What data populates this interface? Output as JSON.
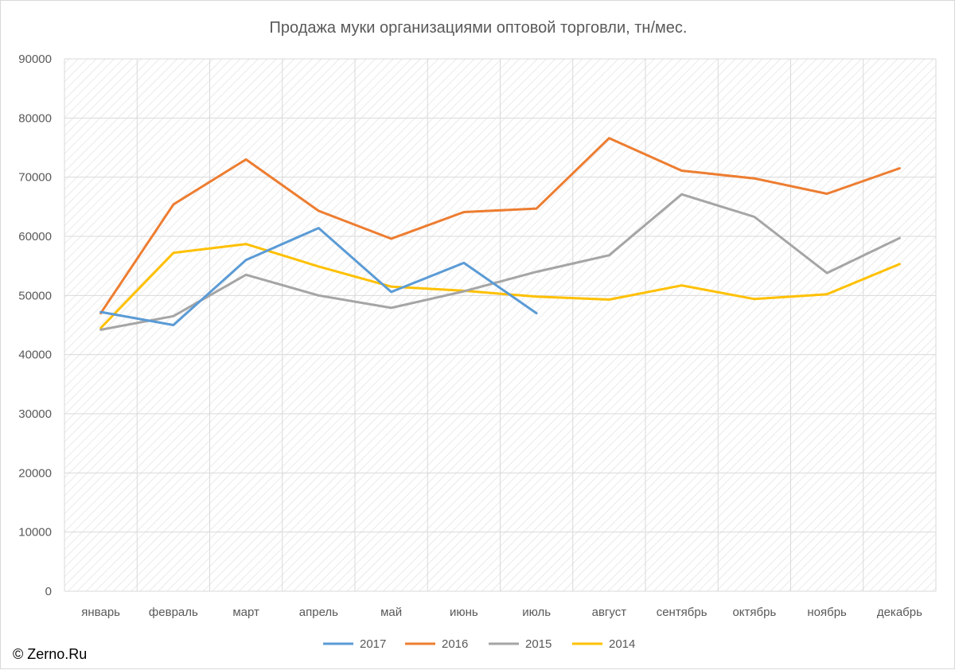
{
  "chart_data": {
    "type": "line",
    "title": "Продажа муки организациями оптовой торговли, тн/мес.",
    "categories": [
      "январь",
      "февраль",
      "март",
      "апрель",
      "май",
      "июнь",
      "июль",
      "август",
      "сентябрь",
      "октябрь",
      "ноябрь",
      "декабрь"
    ],
    "ylim": [
      0,
      90000
    ],
    "yticks": [
      "0",
      "10000",
      "20000",
      "30000",
      "40000",
      "50000",
      "60000",
      "70000",
      "80000",
      "90000"
    ],
    "grid": true,
    "legend_position": "bottom",
    "series": [
      {
        "name": "2017",
        "color": "#5b9bd5",
        "values": [
          47200,
          45000,
          56000,
          61400,
          50600,
          55500,
          47000,
          null,
          null,
          null,
          null,
          null
        ]
      },
      {
        "name": "2016",
        "color": "#ed7d31",
        "values": [
          47000,
          65400,
          73000,
          64300,
          59600,
          64100,
          64700,
          76600,
          71100,
          69800,
          67200,
          71500
        ]
      },
      {
        "name": "2015",
        "color": "#a5a5a5",
        "values": [
          44200,
          46500,
          53500,
          50000,
          47900,
          50700,
          54000,
          56800,
          67100,
          63300,
          53800,
          59700
        ]
      },
      {
        "name": "2014",
        "color": "#ffc000",
        "values": [
          44500,
          57200,
          58700,
          54900,
          51500,
          50800,
          49800,
          49300,
          51700,
          49400,
          50200,
          55300
        ]
      }
    ]
  },
  "copyright": "© Zerno.Ru"
}
